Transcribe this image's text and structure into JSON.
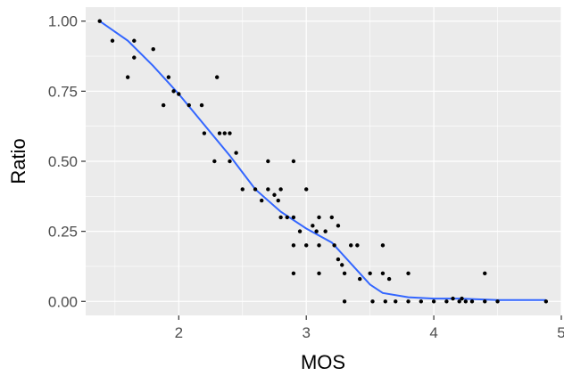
{
  "chart_data": {
    "type": "scatter",
    "title": "",
    "xlabel": "MOS",
    "ylabel": "Ratio",
    "xlim": [
      1.27,
      5.0
    ],
    "ylim": [
      -0.05,
      1.05
    ],
    "x_ticks": [
      2,
      3,
      4,
      5
    ],
    "x_tick_labels": [
      "2",
      "3",
      "4",
      "5"
    ],
    "y_ticks": [
      0,
      0.25,
      0.5,
      0.75,
      1.0
    ],
    "y_tick_labels": [
      "0.00",
      "0.25",
      "0.50",
      "0.75",
      "1.00"
    ],
    "grid": true,
    "legend": "none",
    "colors": {
      "panel": "#ebebeb",
      "grid": "#ffffff",
      "points": "#000000",
      "smooth": "#3366ff"
    },
    "points": [
      [
        1.38,
        1.0
      ],
      [
        1.48,
        0.93
      ],
      [
        1.6,
        0.8
      ],
      [
        1.65,
        0.93
      ],
      [
        1.65,
        0.87
      ],
      [
        1.8,
        0.9
      ],
      [
        1.88,
        0.7
      ],
      [
        1.92,
        0.8
      ],
      [
        1.96,
        0.75
      ],
      [
        2.0,
        0.74
      ],
      [
        2.08,
        0.7
      ],
      [
        2.18,
        0.7
      ],
      [
        2.2,
        0.6
      ],
      [
        2.28,
        0.5
      ],
      [
        2.3,
        0.8
      ],
      [
        2.32,
        0.6
      ],
      [
        2.36,
        0.6
      ],
      [
        2.4,
        0.6
      ],
      [
        2.4,
        0.5
      ],
      [
        2.45,
        0.53
      ],
      [
        2.5,
        0.4
      ],
      [
        2.6,
        0.4
      ],
      [
        2.65,
        0.36
      ],
      [
        2.7,
        0.5
      ],
      [
        2.7,
        0.4
      ],
      [
        2.75,
        0.38
      ],
      [
        2.78,
        0.36
      ],
      [
        2.8,
        0.4
      ],
      [
        2.8,
        0.3
      ],
      [
        2.85,
        0.3
      ],
      [
        2.9,
        0.5
      ],
      [
        2.9,
        0.3
      ],
      [
        2.9,
        0.2
      ],
      [
        2.9,
        0.1
      ],
      [
        2.95,
        0.25
      ],
      [
        3.0,
        0.4
      ],
      [
        3.0,
        0.2
      ],
      [
        3.05,
        0.27
      ],
      [
        3.08,
        0.25
      ],
      [
        3.1,
        0.3
      ],
      [
        3.1,
        0.2
      ],
      [
        3.1,
        0.1
      ],
      [
        3.15,
        0.25
      ],
      [
        3.2,
        0.3
      ],
      [
        3.22,
        0.2
      ],
      [
        3.25,
        0.27
      ],
      [
        3.25,
        0.15
      ],
      [
        3.28,
        0.13
      ],
      [
        3.3,
        0.1
      ],
      [
        3.3,
        0.0
      ],
      [
        3.35,
        0.2
      ],
      [
        3.4,
        0.2
      ],
      [
        3.42,
        0.08
      ],
      [
        3.5,
        0.1
      ],
      [
        3.52,
        0.0
      ],
      [
        3.6,
        0.2
      ],
      [
        3.6,
        0.1
      ],
      [
        3.62,
        0.0
      ],
      [
        3.65,
        0.08
      ],
      [
        3.7,
        0.0
      ],
      [
        3.8,
        0.1
      ],
      [
        3.8,
        0.0
      ],
      [
        3.9,
        0.0
      ],
      [
        4.0,
        0.0
      ],
      [
        4.1,
        0.0
      ],
      [
        4.15,
        0.01
      ],
      [
        4.2,
        0.0
      ],
      [
        4.22,
        0.01
      ],
      [
        4.25,
        0.0
      ],
      [
        4.3,
        0.0
      ],
      [
        4.4,
        0.1
      ],
      [
        4.4,
        0.0
      ],
      [
        4.5,
        0.0
      ],
      [
        4.88,
        0.0
      ]
    ],
    "smooth_line": [
      [
        1.38,
        1.0
      ],
      [
        1.6,
        0.93
      ],
      [
        1.8,
        0.84
      ],
      [
        2.0,
        0.74
      ],
      [
        2.2,
        0.63
      ],
      [
        2.4,
        0.52
      ],
      [
        2.5,
        0.46
      ],
      [
        2.6,
        0.4
      ],
      [
        2.8,
        0.32
      ],
      [
        3.0,
        0.26
      ],
      [
        3.2,
        0.21
      ],
      [
        3.3,
        0.16
      ],
      [
        3.4,
        0.11
      ],
      [
        3.5,
        0.06
      ],
      [
        3.6,
        0.03
      ],
      [
        3.8,
        0.015
      ],
      [
        4.0,
        0.01
      ],
      [
        4.2,
        0.01
      ],
      [
        4.5,
        0.005
      ],
      [
        4.88,
        0.005
      ]
    ]
  }
}
